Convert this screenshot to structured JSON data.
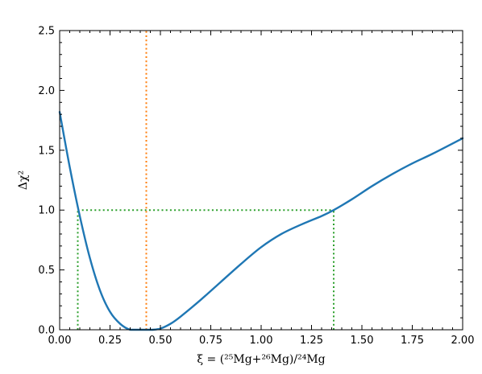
{
  "chart_data": {
    "type": "line",
    "title": "",
    "xlabel": "ξ = (²⁵Mg+²⁶Mg)/²⁴Mg",
    "ylabel": "Δχ²",
    "xlim": [
      0.0,
      2.0
    ],
    "ylim": [
      0.0,
      2.5
    ],
    "xticks": [
      "0.00",
      "0.25",
      "0.50",
      "0.75",
      "1.00",
      "1.25",
      "1.50",
      "1.75",
      "2.00"
    ],
    "yticks": [
      "0.0",
      "0.5",
      "1.0",
      "1.5",
      "2.0",
      "2.5"
    ],
    "grid": false,
    "legend": "none",
    "series": [
      {
        "color": "#1f77b4",
        "x": [
          0.0,
          0.05,
          0.1,
          0.15,
          0.2,
          0.25,
          0.3,
          0.35,
          0.4,
          0.43,
          0.46,
          0.5,
          0.55,
          0.6,
          0.7,
          0.8,
          0.9,
          1.0,
          1.1,
          1.2,
          1.3,
          1.36,
          1.45,
          1.55,
          1.65,
          1.75,
          1.85,
          2.0
        ],
        "y": [
          1.82,
          1.36,
          0.95,
          0.6,
          0.33,
          0.15,
          0.05,
          0.0,
          0.0,
          0.0,
          0.0,
          0.01,
          0.05,
          0.11,
          0.25,
          0.4,
          0.55,
          0.69,
          0.8,
          0.88,
          0.95,
          1.0,
          1.09,
          1.2,
          1.3,
          1.39,
          1.47,
          1.6
        ]
      }
    ],
    "reference_lines": [
      {
        "orientation": "vertical",
        "x": 0.43,
        "color": "#ff7f0e",
        "style": "dotted"
      },
      {
        "orientation": "horizontal",
        "y": 1.0,
        "x_range": [
          0.09,
          1.36
        ],
        "color": "#2ca02c",
        "style": "dotted"
      },
      {
        "orientation": "vertical",
        "x": 0.09,
        "y_range": [
          0.0,
          1.0
        ],
        "color": "#2ca02c",
        "style": "dotted"
      },
      {
        "orientation": "vertical",
        "x": 1.36,
        "y_range": [
          0.0,
          1.0
        ],
        "color": "#2ca02c",
        "style": "dotted"
      }
    ]
  }
}
